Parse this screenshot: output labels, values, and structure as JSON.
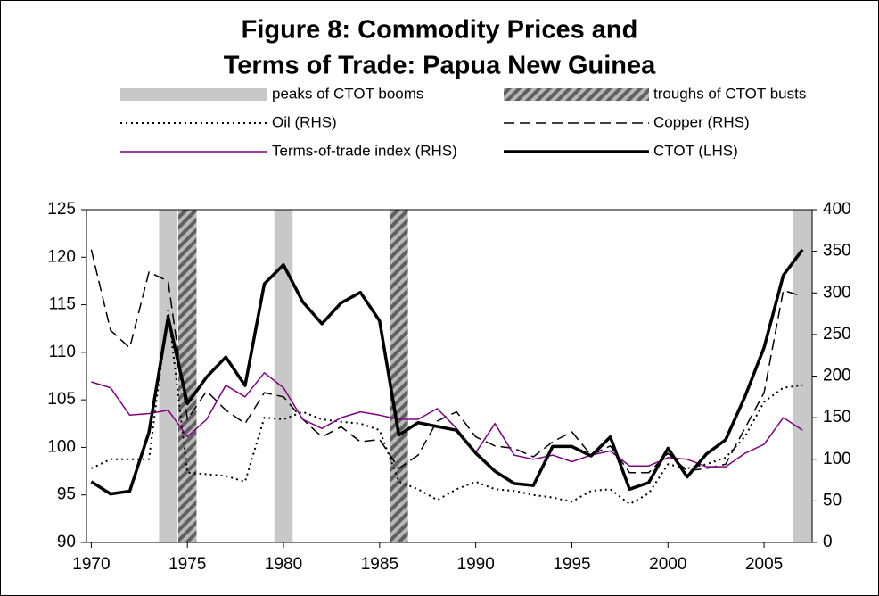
{
  "chart_data": {
    "type": "line",
    "title": [
      "Figure 8: Commodity Prices and",
      "Terms of Trade: Papua New Guinea"
    ],
    "x": [
      1970,
      1971,
      1972,
      1973,
      1974,
      1975,
      1976,
      1977,
      1978,
      1979,
      1980,
      1981,
      1982,
      1983,
      1984,
      1985,
      1986,
      1987,
      1988,
      1989,
      1990,
      1991,
      1992,
      1993,
      1994,
      1995,
      1996,
      1997,
      1998,
      1999,
      2000,
      2001,
      2002,
      2003,
      2004,
      2005,
      2006,
      2007
    ],
    "xlim": [
      1969.75,
      2007.5
    ],
    "xticks": [
      1970,
      1975,
      1980,
      1985,
      1990,
      1995,
      2000,
      2005
    ],
    "ylim": [
      90,
      125
    ],
    "yticks": [
      90,
      95,
      100,
      105,
      110,
      115,
      120,
      125
    ],
    "y2lim": [
      0,
      400
    ],
    "y2ticks": [
      0,
      50,
      100,
      150,
      200,
      250,
      300,
      350,
      400
    ],
    "bands": [
      {
        "name": "peaks of CTOT booms",
        "color": "#c8c8c8",
        "pattern": "solid",
        "x": [
          1974,
          1980,
          2007
        ]
      },
      {
        "name": "troughs of CTOT busts",
        "color": "#808080",
        "pattern": "hatch",
        "x": [
          1975,
          1986
        ]
      }
    ],
    "series": [
      {
        "name": "Oil (RHS)",
        "color": "#000000",
        "dash": "dotted",
        "width": 2,
        "axis": "y2",
        "values": [
          89,
          100,
          100,
          100,
          279,
          84,
          82,
          80,
          73,
          150,
          148,
          157,
          148,
          145,
          143,
          135,
          73,
          64,
          51,
          64,
          73,
          64,
          62,
          57,
          54,
          49,
          62,
          64,
          46,
          59,
          94,
          89,
          94,
          102,
          127,
          169,
          186,
          189
        ]
      },
      {
        "name": "Copper (RHS)",
        "color": "#000000",
        "dash": "dashed",
        "width": 1.5,
        "axis": "y2",
        "values": [
          352,
          255,
          234,
          325,
          314,
          148,
          182,
          159,
          143,
          180,
          175,
          148,
          127,
          139,
          121,
          124,
          89,
          105,
          146,
          157,
          127,
          116,
          113,
          103,
          121,
          133,
          105,
          116,
          84,
          84,
          107,
          86,
          89,
          94,
          137,
          180,
          303,
          296
        ]
      },
      {
        "name": "Terms-of-trade index (RHS)",
        "color": "#800080",
        "dash": "solid",
        "width": 1.5,
        "axis": "y2",
        "values": [
          193,
          186,
          153,
          155,
          159,
          127,
          148,
          189,
          175,
          204,
          186,
          148,
          137,
          150,
          157,
          153,
          148,
          148,
          161,
          137,
          108,
          143,
          105,
          100,
          105,
          97,
          105,
          110,
          92,
          92,
          102,
          100,
          91,
          91,
          107,
          118,
          150,
          135
        ]
      },
      {
        "name": "CTOT (LHS)",
        "color": "#000000",
        "dash": "solid",
        "width": 3.5,
        "axis": "y",
        "values": [
          96.4,
          95.1,
          95.4,
          101.6,
          113.7,
          104.6,
          107.4,
          109.5,
          106.5,
          117.2,
          119.2,
          115.3,
          113.0,
          115.2,
          116.3,
          113.3,
          101.3,
          102.6,
          102.2,
          101.8,
          99.4,
          97.5,
          96.2,
          96.0,
          100.1,
          100.1,
          99.1,
          101.1,
          95.6,
          96.3,
          99.9,
          96.9,
          99.3,
          100.8,
          105.3,
          110.5,
          118.1,
          120.8
        ]
      }
    ]
  }
}
